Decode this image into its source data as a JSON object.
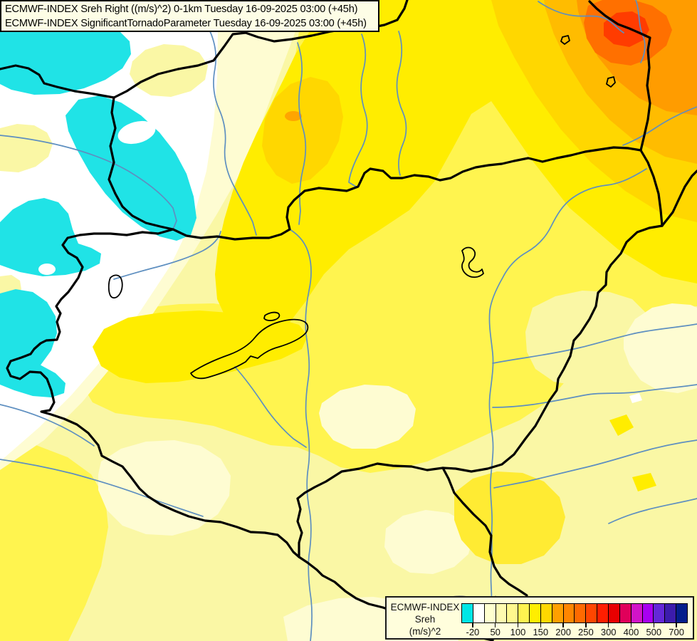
{
  "title_box": {
    "line1": "ECMWF-INDEX Sreh Right ((m/s)^2) 0-1km Tuesday 16-09-2025 03:00 (+45h)",
    "line2": "ECMWF-INDEX SignificantTornadoParameter Tuesday 16-09-2025 03:00 (+45h)"
  },
  "legend": {
    "title_lines": [
      "ECMWF-INDEX",
      "Sreh",
      "(m/s)^2"
    ],
    "colors": [
      "#00E6E6",
      "#FFFFFF",
      "#FFFFCF",
      "#FFFBB0",
      "#FFF88E",
      "#FFF34F",
      "#FFEE00",
      "#FFD800",
      "#FFA000",
      "#FF8600",
      "#FF6A00",
      "#FF4600",
      "#FF1E00",
      "#E80000",
      "#E0005A",
      "#D214C8",
      "#A800F0",
      "#6428D8",
      "#3C1CAC",
      "#041E8C"
    ],
    "tick_labels": [
      "-20",
      "50",
      "100",
      "150",
      "200",
      "250",
      "300",
      "400",
      "500",
      "700"
    ],
    "tick_boundaries": [
      1,
      3,
      5,
      7,
      9,
      11,
      13,
      15,
      17,
      19
    ],
    "box_count": 20
  },
  "map": {
    "palette": {
      "base_pale_yellow": "#FAF7A5",
      "cream": "#FEFCD2",
      "white": "#FFFFFF",
      "cyan": "#20E3E6",
      "yellow": "#FFF44F",
      "bright_yellow": "#FFED00",
      "yellow_bright_patch": "#FFEB33",
      "golden": "#FFD700",
      "amber": "#FFBC00",
      "orange": "#FF9C00",
      "dark_orange": "#FF7000",
      "red_orange": "#FF3C00",
      "orange_spot": "#FFA500",
      "border_stroke": "#000000",
      "river_stroke": "#5E8FC0",
      "gray_river_stroke": "#8A8A8A",
      "lake_stroke": "#000000"
    }
  }
}
